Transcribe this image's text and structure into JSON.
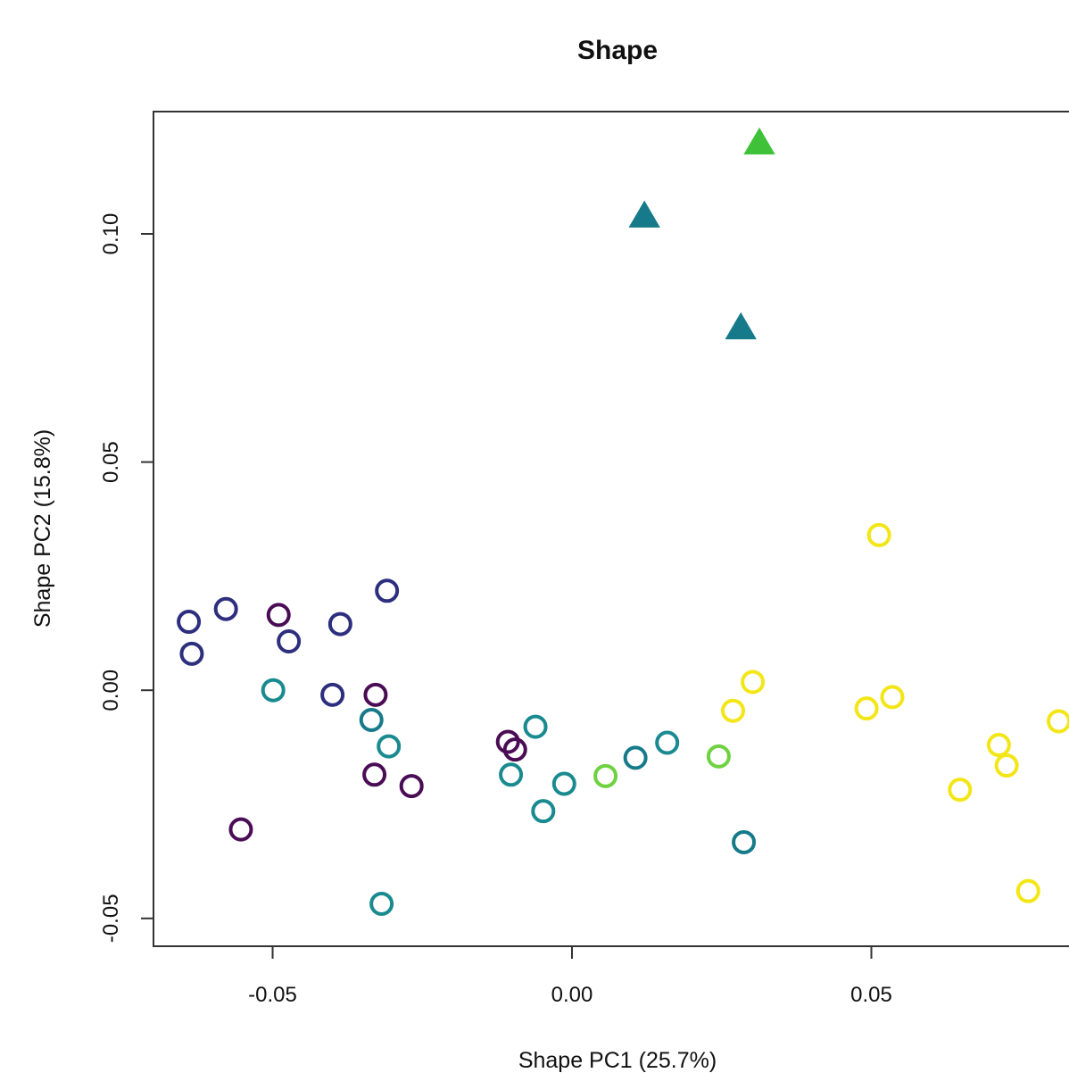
{
  "chart_data": {
    "type": "scatter",
    "title": "Shape",
    "xlabel": "Shape PC1 (25.7%)",
    "ylabel": "Shape PC2 (15.8%)",
    "xlim": [
      -0.0699,
      0.0851
    ],
    "ylim": [
      -0.0561,
      0.1268
    ],
    "x_ticks": [
      {
        "value": -0.05,
        "label": "-0.05"
      },
      {
        "value": 0.0,
        "label": "0.00"
      },
      {
        "value": 0.05,
        "label": "0.05"
      }
    ],
    "y_ticks": [
      {
        "value": -0.05,
        "label": "-0.05"
      },
      {
        "value": 0.0,
        "label": "0.00"
      },
      {
        "value": 0.05,
        "label": "0.05"
      },
      {
        "value": 0.1,
        "label": "0.10"
      }
    ],
    "grid": false,
    "colors": {
      "purple": "#4a0c55",
      "navy": "#2d2f7e",
      "teal": "#198a8f",
      "darkteal": "#167a8a",
      "green": "#3fc23a",
      "lightgreen": "#6fd240",
      "yellow": "#f3e617"
    },
    "points": [
      {
        "x": -0.064,
        "y": 0.015,
        "shape": "circle",
        "color": "navy"
      },
      {
        "x": -0.0635,
        "y": 0.008,
        "shape": "circle",
        "color": "navy"
      },
      {
        "x": -0.0578,
        "y": 0.0178,
        "shape": "circle",
        "color": "navy"
      },
      {
        "x": -0.0387,
        "y": 0.0145,
        "shape": "circle",
        "color": "navy"
      },
      {
        "x": -0.0473,
        "y": 0.0107,
        "shape": "circle",
        "color": "navy"
      },
      {
        "x": -0.0309,
        "y": 0.0218,
        "shape": "circle",
        "color": "navy"
      },
      {
        "x": -0.04,
        "y": -0.001,
        "shape": "circle",
        "color": "navy"
      },
      {
        "x": -0.049,
        "y": 0.0165,
        "shape": "circle",
        "color": "purple"
      },
      {
        "x": -0.0328,
        "y": -0.001,
        "shape": "circle",
        "color": "purple"
      },
      {
        "x": -0.033,
        "y": -0.0185,
        "shape": "circle",
        "color": "purple"
      },
      {
        "x": -0.0268,
        "y": -0.021,
        "shape": "circle",
        "color": "purple"
      },
      {
        "x": -0.0553,
        "y": -0.0305,
        "shape": "circle",
        "color": "purple"
      },
      {
        "x": -0.0107,
        "y": -0.0113,
        "shape": "circle",
        "color": "purple"
      },
      {
        "x": -0.0095,
        "y": -0.013,
        "shape": "circle",
        "color": "purple"
      },
      {
        "x": -0.0499,
        "y": 0.0,
        "shape": "circle",
        "color": "teal"
      },
      {
        "x": -0.0335,
        "y": -0.0065,
        "shape": "circle",
        "color": "darkteal"
      },
      {
        "x": -0.0306,
        "y": -0.0123,
        "shape": "circle",
        "color": "teal"
      },
      {
        "x": -0.0318,
        "y": -0.0468,
        "shape": "circle",
        "color": "teal"
      },
      {
        "x": -0.0102,
        "y": -0.0185,
        "shape": "circle",
        "color": "teal"
      },
      {
        "x": -0.0061,
        "y": -0.008,
        "shape": "circle",
        "color": "teal"
      },
      {
        "x": -0.0048,
        "y": -0.0265,
        "shape": "circle",
        "color": "teal"
      },
      {
        "x": -0.0013,
        "y": -0.0205,
        "shape": "circle",
        "color": "teal"
      },
      {
        "x": 0.0106,
        "y": -0.0148,
        "shape": "circle",
        "color": "darkteal"
      },
      {
        "x": 0.0159,
        "y": -0.0115,
        "shape": "circle",
        "color": "teal"
      },
      {
        "x": 0.0287,
        "y": -0.0333,
        "shape": "circle",
        "color": "darkteal"
      },
      {
        "x": 0.0056,
        "y": -0.0188,
        "shape": "circle",
        "color": "lightgreen"
      },
      {
        "x": 0.0245,
        "y": -0.0145,
        "shape": "circle",
        "color": "lightgreen"
      },
      {
        "x": 0.0269,
        "y": -0.0045,
        "shape": "circle",
        "color": "yellow"
      },
      {
        "x": 0.0302,
        "y": 0.0018,
        "shape": "circle",
        "color": "yellow"
      },
      {
        "x": 0.0492,
        "y": -0.004,
        "shape": "circle",
        "color": "yellow"
      },
      {
        "x": 0.0535,
        "y": -0.0015,
        "shape": "circle",
        "color": "yellow"
      },
      {
        "x": 0.0513,
        "y": 0.034,
        "shape": "circle",
        "color": "yellow"
      },
      {
        "x": 0.0648,
        "y": -0.0218,
        "shape": "circle",
        "color": "yellow"
      },
      {
        "x": 0.0713,
        "y": -0.012,
        "shape": "circle",
        "color": "yellow"
      },
      {
        "x": 0.0726,
        "y": -0.0165,
        "shape": "circle",
        "color": "yellow"
      },
      {
        "x": 0.0813,
        "y": -0.0068,
        "shape": "circle",
        "color": "yellow"
      },
      {
        "x": 0.0762,
        "y": -0.044,
        "shape": "circle",
        "color": "yellow"
      },
      {
        "x": 0.0313,
        "y": 0.12,
        "shape": "triangle",
        "color": "green"
      },
      {
        "x": 0.0121,
        "y": 0.104,
        "shape": "triangle",
        "color": "darkteal"
      },
      {
        "x": 0.0282,
        "y": 0.0795,
        "shape": "triangle",
        "color": "darkteal"
      }
    ]
  }
}
